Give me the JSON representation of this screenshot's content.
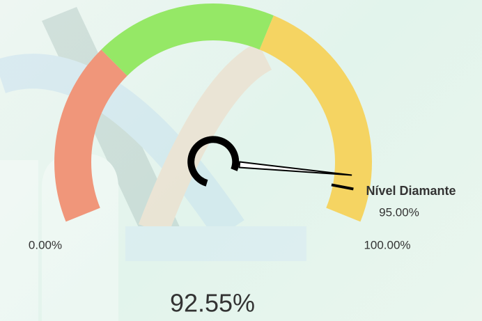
{
  "chart_data": {
    "type": "gauge",
    "value": 92.55,
    "value_label": "92.55%",
    "min": {
      "value": 0,
      "label": "0.00%"
    },
    "max": {
      "value": 100,
      "label": "100.00%"
    },
    "target": {
      "value": 95,
      "label": "95.00%",
      "name": "Nível Diamante"
    },
    "bands": [
      {
        "from": 0,
        "to": 30,
        "color": "#f0967a"
      },
      {
        "from": 30,
        "to": 60,
        "color": "#95e866"
      },
      {
        "from": 60,
        "to": 100,
        "color": "#f5d462"
      }
    ],
    "needle_color": "#000000"
  }
}
